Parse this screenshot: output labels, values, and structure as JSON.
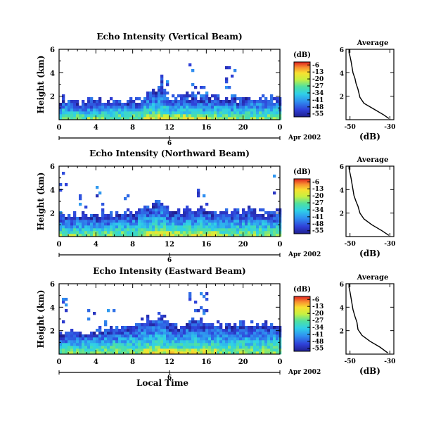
{
  "figure": {
    "xlabel": "Local Time",
    "date_label": "Apr 2002",
    "colorbar_label": "(dB)",
    "average_title": "Average",
    "average_xlabel": "(dB)"
  },
  "chart_data": [
    {
      "type": "heatmap",
      "title": "Echo Intensity (Vertical Beam)",
      "xlabel": "Local Time",
      "ylabel": "Height (km)",
      "x_ticks": [
        "0",
        "4",
        "8",
        "12",
        "16",
        "20",
        "0"
      ],
      "day_label": "6",
      "y_ticks": [
        "2",
        "4",
        "6"
      ],
      "xlim": [
        0,
        24
      ],
      "ylim": [
        0,
        6
      ],
      "colorbar": {
        "label": "(dB)",
        "ticks": [
          "-6",
          "-13",
          "-20",
          "-27",
          "-34",
          "-41",
          "-48",
          "-55"
        ],
        "range": [
          -58,
          -3
        ]
      },
      "boundary_layer_top_km": [
        1.6,
        1.5,
        1.3,
        1.3,
        1.4,
        1.4,
        1.5,
        1.5,
        1.6,
        1.7,
        2.3,
        2.6,
        1.7,
        1.8,
        1.9,
        1.7,
        1.8,
        1.8,
        1.7,
        1.7,
        1.8,
        1.8,
        1.9,
        1.7,
        1.6
      ],
      "scattered_echo_top_km": [
        0.0,
        0.0,
        0.0,
        0.0,
        0.0,
        0.0,
        0.0,
        0.0,
        0.0,
        0.0,
        0.0,
        4.2,
        0.0,
        0.0,
        5.2,
        3.7,
        0.0,
        0.0,
        4.7,
        0.0,
        0.0,
        0.0,
        0.0,
        0.0,
        0.0
      ]
    },
    {
      "type": "heatmap",
      "title": "Echo Intensity (Northward Beam)",
      "xlabel": "Local Time",
      "ylabel": "Height (km)",
      "x_ticks": [
        "0",
        "4",
        "8",
        "12",
        "16",
        "20",
        "0"
      ],
      "day_label": "6",
      "y_ticks": [
        "2",
        "4",
        "6"
      ],
      "xlim": [
        0,
        24
      ],
      "ylim": [
        0,
        6
      ],
      "colorbar": {
        "label": "(dB)",
        "ticks": [
          "-6",
          "-13",
          "-20",
          "-27",
          "-34",
          "-41",
          "-48",
          "-55"
        ],
        "range": [
          -58,
          -3
        ]
      },
      "boundary_layer_top_km": [
        1.7,
        1.6,
        1.6,
        1.5,
        1.6,
        1.6,
        1.7,
        1.8,
        1.8,
        2.1,
        2.6,
        2.9,
        2.0,
        2.0,
        2.3,
        2.1,
        2.1,
        2.0,
        1.9,
        1.9,
        2.0,
        2.0,
        2.0,
        1.9,
        1.8
      ],
      "scattered_echo_top_km": [
        5.5,
        0.0,
        4.6,
        0.0,
        4.4,
        0.0,
        0.0,
        4.2,
        0.0,
        0.0,
        0.0,
        0.0,
        0.0,
        0.0,
        5.3,
        4.6,
        0.0,
        0.0,
        0.0,
        0.0,
        0.0,
        0.0,
        0.0,
        5.6,
        0.0
      ]
    },
    {
      "type": "heatmap",
      "title": "Echo Intensity (Eastward Beam)",
      "xlabel": "Local Time",
      "ylabel": "Height (km)",
      "x_ticks": [
        "0",
        "4",
        "8",
        "12",
        "16",
        "20",
        "0"
      ],
      "day_label": "6",
      "y_ticks": [
        "2",
        "4",
        "6"
      ],
      "xlim": [
        0,
        24
      ],
      "ylim": [
        0,
        6
      ],
      "colorbar": {
        "label": "(dB)",
        "ticks": [
          "-6",
          "-13",
          "-20",
          "-27",
          "-34",
          "-41",
          "-48",
          "-55"
        ],
        "range": [
          -58,
          -3
        ]
      },
      "boundary_layer_top_km": [
        1.8,
        1.7,
        1.6,
        1.6,
        1.8,
        2.0,
        2.1,
        2.2,
        2.3,
        2.6,
        2.9,
        3.2,
        2.4,
        2.3,
        2.5,
        2.6,
        2.5,
        2.4,
        2.2,
        2.3,
        2.4,
        2.4,
        2.3,
        2.3,
        2.2
      ],
      "scattered_echo_top_km": [
        4.7,
        0.0,
        0.0,
        3.8,
        0.0,
        4.2,
        0.0,
        0.0,
        0.0,
        5.4,
        0.0,
        0.0,
        0.0,
        0.0,
        5.6,
        5.6,
        0.0,
        0.0,
        0.0,
        0.0,
        0.0,
        0.0,
        0.0,
        0.0,
        0.0
      ]
    },
    {
      "type": "line",
      "title": "Average",
      "xlabel": "(dB)",
      "x_ticks": [
        "-50",
        "-30"
      ],
      "y_ticks": [
        "2",
        "4",
        "6"
      ],
      "xlim": [
        -52,
        -28
      ],
      "ylim": [
        0,
        6
      ],
      "series": [
        {
          "x": [
            -30.5,
            -33,
            -38,
            -43,
            -45,
            -46,
            -47,
            -47.5,
            -48.5,
            -49,
            -49.5,
            -50,
            -50.5,
            -50.5
          ],
          "y": [
            0.1,
            0.4,
            0.9,
            1.4,
            1.9,
            2.6,
            3.1,
            3.5,
            4.0,
            4.5,
            5.0,
            5.4,
            5.7,
            6.0
          ]
        }
      ]
    },
    {
      "type": "line",
      "title": "Average",
      "xlabel": "(dB)",
      "x_ticks": [
        "-50",
        "-30"
      ],
      "y_ticks": [
        "2",
        "4",
        "6"
      ],
      "xlim": [
        -52,
        -28
      ],
      "ylim": [
        0,
        6
      ],
      "series": [
        {
          "x": [
            -30.5,
            -34,
            -39,
            -43,
            -45,
            -46,
            -47,
            -48,
            -48.5,
            -49,
            -49.5,
            -50,
            -50.5,
            -50.5
          ],
          "y": [
            0.1,
            0.5,
            1.0,
            1.5,
            2.0,
            2.6,
            3.0,
            3.5,
            4.0,
            4.5,
            5.0,
            5.4,
            5.8,
            6.0
          ]
        }
      ]
    },
    {
      "type": "line",
      "title": "Average",
      "xlabel": "(dB)",
      "x_ticks": [
        "-50",
        "-30"
      ],
      "y_ticks": [
        "2",
        "4",
        "6"
      ],
      "xlim": [
        -52,
        -28
      ],
      "ylim": [
        0,
        6
      ],
      "series": [
        {
          "x": [
            -31,
            -35,
            -40,
            -44,
            -46,
            -46.5,
            -47.5,
            -48.5,
            -49,
            -49.5,
            -50,
            -50.5,
            -50.5
          ],
          "y": [
            0.1,
            0.6,
            1.1,
            1.6,
            2.1,
            2.7,
            3.2,
            3.8,
            4.3,
            4.8,
            5.3,
            5.7,
            6.0
          ]
        }
      ]
    }
  ]
}
